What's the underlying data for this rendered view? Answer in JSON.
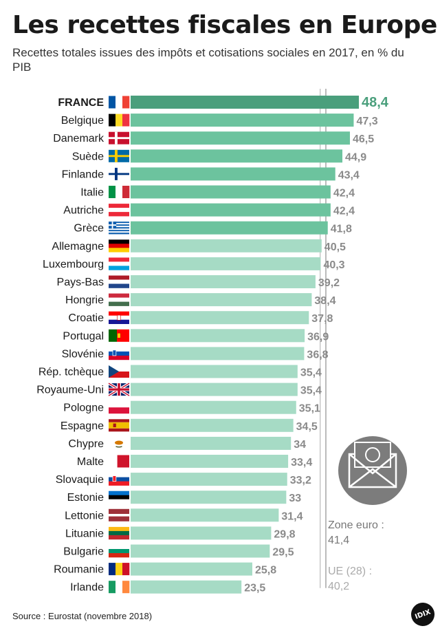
{
  "header": {
    "title": "Les recettes fiscales en Europe",
    "subtitle": "Recettes totales issues des impôts et cotisations sociales en 2017, en % du PIB"
  },
  "footer": {
    "source": "Source : Eurostat (novembre 2018)",
    "logo": "IDIX"
  },
  "colors": {
    "highlight_bar": "#4a9f7c",
    "above_bar": "#6cc39e",
    "below_bar": "#a6dbc5",
    "value_grey": "#8a8a8a",
    "highlight_value": "#4a9f7c",
    "euro_ref": "#777777",
    "ue_ref": "#aaaaaa",
    "envelope_circle": "#7c7c7c"
  },
  "chart_data": {
    "type": "bar",
    "orientation": "horizontal",
    "title": "Les recettes fiscales en Europe",
    "subtitle": "Recettes totales issues des impôts et cotisations sociales en 2017, en % du PIB",
    "xlim": [
      0,
      48.4
    ],
    "highlight": "FRANCE",
    "categories": [
      "FRANCE",
      "Belgique",
      "Danemark",
      "Suède",
      "Finlande",
      "Italie",
      "Autriche",
      "Grèce",
      "Allemagne",
      "Luxembourg",
      "Pays-Bas",
      "Hongrie",
      "Croatie",
      "Portugal",
      "Slovénie",
      "Rép. tchèque",
      "Royaume-Uni",
      "Pologne",
      "Espagne",
      "Chypre",
      "Malte",
      "Slovaquie",
      "Estonie",
      "Lettonie",
      "Lituanie",
      "Bulgarie",
      "Roumanie",
      "Irlande"
    ],
    "values": [
      48.4,
      47.3,
      46.5,
      44.9,
      43.4,
      42.4,
      42.4,
      41.8,
      40.5,
      40.3,
      39.2,
      38.4,
      37.8,
      36.9,
      36.8,
      35.4,
      35.4,
      35.1,
      34.5,
      34,
      33.4,
      33.2,
      33,
      31.4,
      29.8,
      29.5,
      25.8,
      23.5
    ],
    "value_labels": [
      "48,4",
      "47,3",
      "46,5",
      "44,9",
      "43,4",
      "42,4",
      "42,4",
      "41,8",
      "40,5",
      "40,3",
      "39,2",
      "38,4",
      "37,8",
      "36,9",
      "36,8",
      "35,4",
      "35,4",
      "35,1",
      "34,5",
      "34",
      "33,4",
      "33,2",
      "33",
      "31,4",
      "29,8",
      "29,5",
      "25,8",
      "23,5"
    ],
    "reference_lines": [
      {
        "name": "Zone euro",
        "value": 41.4,
        "label": "Zone euro :",
        "value_label": "41,4"
      },
      {
        "name": "UE (28)",
        "value": 40.2,
        "label": "UE (28) :",
        "value_label": "40,2"
      }
    ]
  }
}
